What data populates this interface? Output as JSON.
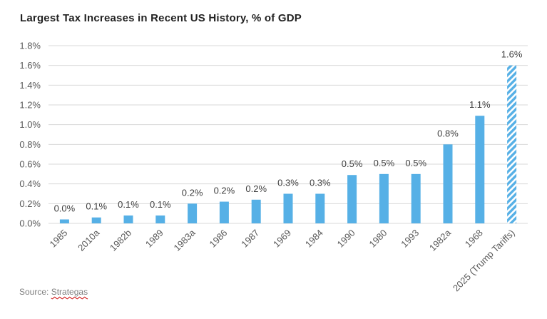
{
  "title": "Largest Tax Increases in Recent US History, % of GDP",
  "source": {
    "prefix": "Source: ",
    "name": "Strategas"
  },
  "colors": {
    "bar": "#56b0e6",
    "hatch": "#56b0e6",
    "grid": "#d9d9d9"
  },
  "chart_data": {
    "type": "bar",
    "title": "Largest Tax Increases in Recent US History, % of GDP",
    "xlabel": "",
    "ylabel": "",
    "ylim": [
      0,
      1.8
    ],
    "yticks": [
      "0.0%",
      "0.2%",
      "0.4%",
      "0.6%",
      "0.8%",
      "1.0%",
      "1.2%",
      "1.4%",
      "1.6%",
      "1.8%"
    ],
    "grid": true,
    "categories": [
      "1985",
      "2010a",
      "1982b",
      "1989",
      "1983a",
      "1986",
      "1987",
      "1969",
      "1984",
      "1990",
      "1980",
      "1993",
      "1982a",
      "1968",
      "2025 (Trump Tariffs)"
    ],
    "values": [
      0.04,
      0.06,
      0.08,
      0.08,
      0.2,
      0.22,
      0.24,
      0.3,
      0.3,
      0.49,
      0.5,
      0.5,
      0.8,
      1.09,
      1.6
    ],
    "data_labels": [
      "0.0%",
      "0.1%",
      "0.1%",
      "0.1%",
      "0.2%",
      "0.2%",
      "0.2%",
      "0.3%",
      "0.3%",
      "0.5%",
      "0.5%",
      "0.5%",
      "0.8%",
      "1.1%",
      "1.6%"
    ],
    "hatched": [
      false,
      false,
      false,
      false,
      false,
      false,
      false,
      false,
      false,
      false,
      false,
      false,
      false,
      false,
      true
    ]
  }
}
